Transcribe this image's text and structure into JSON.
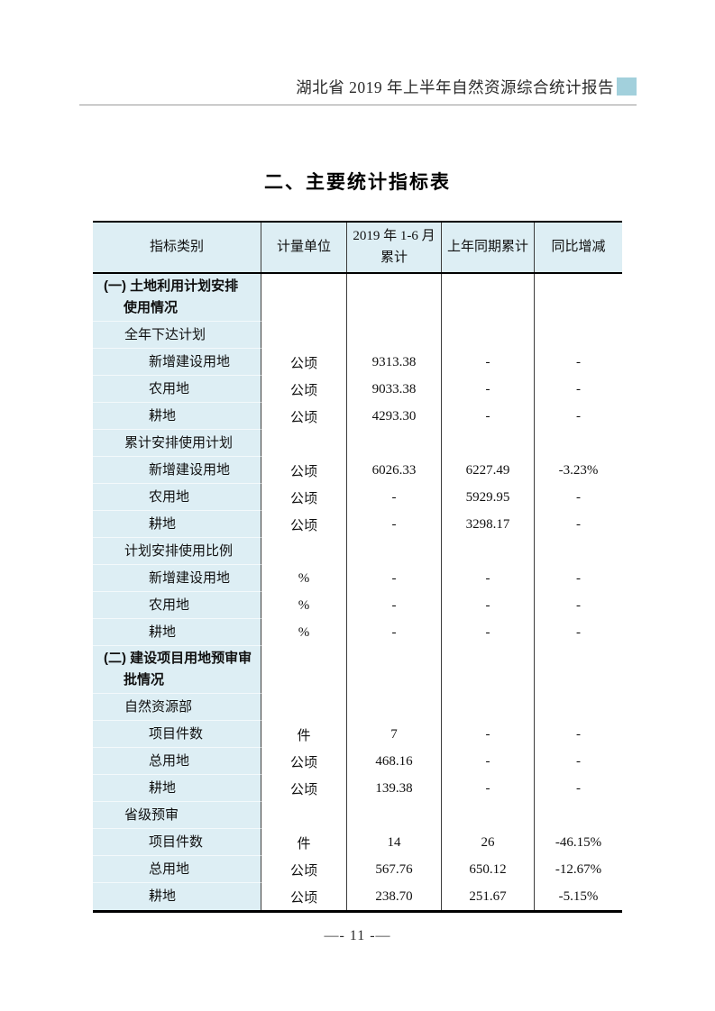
{
  "page": {
    "running_header": "湖北省 2019 年上半年自然资源综合统计报告",
    "section_title": "二、主要统计指标表",
    "page_number": "—- 11 -—"
  },
  "colors": {
    "band": "#ddeef4",
    "marker": "#a2d0dc"
  },
  "table": {
    "columns": [
      "指标类别",
      "计量单位",
      "2019 年 1-6 月\n累计",
      "上年同期累计",
      "同比增减"
    ],
    "rows": [
      {
        "label": "(一) 土地利用计划安排\n使用情况",
        "bold": true,
        "indent": 0,
        "unit": "",
        "current": "",
        "previous": "",
        "yoy": ""
      },
      {
        "label": "全年下达计划",
        "bold": false,
        "indent": 1,
        "unit": "",
        "current": "",
        "previous": "",
        "yoy": ""
      },
      {
        "label": "新增建设用地",
        "bold": false,
        "indent": 2,
        "unit": "公顷",
        "current": "9313.38",
        "previous": "-",
        "yoy": "-"
      },
      {
        "label": "农用地",
        "bold": false,
        "indent": 2,
        "unit": "公顷",
        "current": "9033.38",
        "previous": "-",
        "yoy": "-"
      },
      {
        "label": "耕地",
        "bold": false,
        "indent": 2,
        "unit": "公顷",
        "current": "4293.30",
        "previous": "-",
        "yoy": "-"
      },
      {
        "label": "累计安排使用计划",
        "bold": false,
        "indent": 1,
        "unit": "",
        "current": "",
        "previous": "",
        "yoy": ""
      },
      {
        "label": "新增建设用地",
        "bold": false,
        "indent": 2,
        "unit": "公顷",
        "current": "6026.33",
        "previous": "6227.49",
        "yoy": "-3.23%"
      },
      {
        "label": "农用地",
        "bold": false,
        "indent": 2,
        "unit": "公顷",
        "current": "-",
        "previous": "5929.95",
        "yoy": "-"
      },
      {
        "label": "耕地",
        "bold": false,
        "indent": 2,
        "unit": "公顷",
        "current": "-",
        "previous": "3298.17",
        "yoy": "-"
      },
      {
        "label": "计划安排使用比例",
        "bold": false,
        "indent": 1,
        "unit": "",
        "current": "",
        "previous": "",
        "yoy": ""
      },
      {
        "label": "新增建设用地",
        "bold": false,
        "indent": 2,
        "unit": "%",
        "current": "-",
        "previous": "-",
        "yoy": "-"
      },
      {
        "label": "农用地",
        "bold": false,
        "indent": 2,
        "unit": "%",
        "current": "-",
        "previous": "-",
        "yoy": "-"
      },
      {
        "label": "耕地",
        "bold": false,
        "indent": 2,
        "unit": "%",
        "current": "-",
        "previous": "-",
        "yoy": "-"
      },
      {
        "label": "(二) 建设项目用地预审审\n批情况",
        "bold": true,
        "indent": 0,
        "unit": "",
        "current": "",
        "previous": "",
        "yoy": ""
      },
      {
        "label": "自然资源部",
        "bold": false,
        "indent": 1,
        "unit": "",
        "current": "",
        "previous": "",
        "yoy": ""
      },
      {
        "label": "项目件数",
        "bold": false,
        "indent": 2,
        "unit": "件",
        "current": "7",
        "previous": "-",
        "yoy": "-"
      },
      {
        "label": "总用地",
        "bold": false,
        "indent": 2,
        "unit": "公顷",
        "current": "468.16",
        "previous": "-",
        "yoy": "-"
      },
      {
        "label": "耕地",
        "bold": false,
        "indent": 2,
        "unit": "公顷",
        "current": "139.38",
        "previous": "-",
        "yoy": "-"
      },
      {
        "label": "省级预审",
        "bold": false,
        "indent": 1,
        "unit": "",
        "current": "",
        "previous": "",
        "yoy": ""
      },
      {
        "label": "项目件数",
        "bold": false,
        "indent": 2,
        "unit": "件",
        "current": "14",
        "previous": "26",
        "yoy": "-46.15%"
      },
      {
        "label": "总用地",
        "bold": false,
        "indent": 2,
        "unit": "公顷",
        "current": "567.76",
        "previous": "650.12",
        "yoy": "-12.67%"
      },
      {
        "label": "耕地",
        "bold": false,
        "indent": 2,
        "unit": "公顷",
        "current": "238.70",
        "previous": "251.67",
        "yoy": "-5.15%"
      }
    ]
  }
}
